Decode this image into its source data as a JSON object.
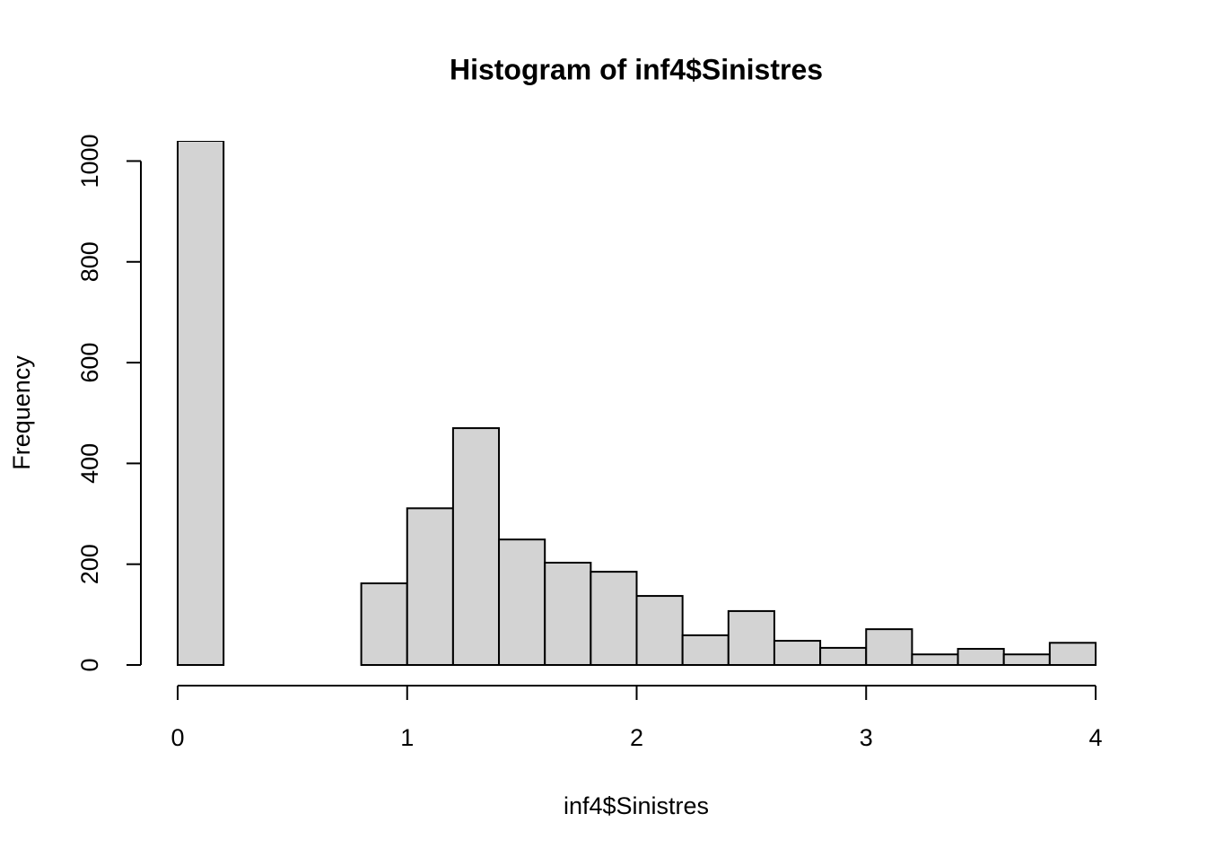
{
  "chart_data": {
    "type": "histogram",
    "title": "Histogram of inf4$Sinistres",
    "x_label": "inf4$Sinistres",
    "y_label": "Frequency",
    "bins": [
      0,
      0.2,
      0.4,
      0.6,
      0.8,
      1.0,
      1.2,
      1.4,
      1.6,
      1.8,
      2.0,
      2.2,
      2.4,
      2.6,
      2.8,
      3.0,
      3.2,
      3.4,
      3.6,
      3.8,
      4.0
    ],
    "counts": [
      1040,
      0,
      0,
      0,
      162,
      311,
      470,
      249,
      203,
      185,
      137,
      59,
      107,
      48,
      34,
      71,
      21,
      32,
      21,
      44
    ],
    "color": "#d3d3d3",
    "xlim": [
      0,
      4
    ],
    "xticks": [
      0,
      1,
      2,
      3,
      4
    ],
    "ylim": [
      0,
      1040
    ],
    "yticks": [
      0,
      200,
      400,
      600,
      800,
      1000
    ]
  }
}
